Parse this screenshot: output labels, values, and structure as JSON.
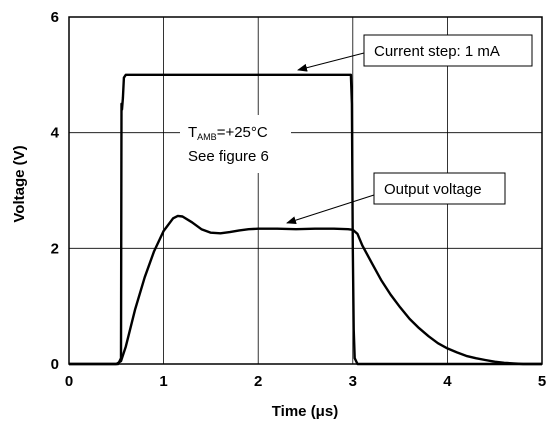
{
  "chart_data": {
    "type": "line",
    "title": "",
    "xlabel": "Time (μs)",
    "ylabel": "Voltage (V)",
    "xlim": [
      0,
      5
    ],
    "ylim": [
      0,
      6
    ],
    "x_ticks": [
      0,
      1,
      2,
      3,
      4,
      5
    ],
    "y_ticks": [
      0,
      2,
      4,
      6
    ],
    "x_tick_labels": [
      "0",
      "1",
      "2",
      "3",
      "4",
      "5"
    ],
    "y_tick_labels": [
      "0",
      "2",
      "4",
      "6"
    ],
    "grid": true,
    "line_color": "#000000",
    "series": [
      {
        "x": [
          0,
          0.52,
          0.55,
          0.555,
          0.56,
          0.57,
          0.58,
          0.6,
          2.0,
          2.98,
          2.99,
          3.0,
          3.01,
          3.02,
          3.05,
          3.1,
          4.0,
          5.0
        ],
        "y": [
          0,
          0,
          0.1,
          4.5,
          4.4,
          4.6,
          4.95,
          5.0,
          5.0,
          5.0,
          4.5,
          2.0,
          0.6,
          0.1,
          0.0,
          0.0,
          0.0,
          0.0
        ]
      },
      {
        "x": [
          0,
          0.5,
          0.55,
          0.6,
          0.7,
          0.8,
          0.9,
          1.0,
          1.1,
          1.15,
          1.2,
          1.3,
          1.4,
          1.5,
          1.6,
          1.7,
          1.8,
          1.9,
          2.0,
          2.2,
          2.4,
          2.6,
          2.8,
          2.95,
          3.0,
          3.05,
          3.1,
          3.2,
          3.3,
          3.4,
          3.5,
          3.6,
          3.7,
          3.8,
          3.9,
          4.0,
          4.1,
          4.2,
          4.3,
          4.4,
          4.5,
          4.6,
          4.7,
          4.8,
          5.0
        ],
        "y": [
          0,
          0,
          0.05,
          0.3,
          0.95,
          1.5,
          1.95,
          2.3,
          2.52,
          2.56,
          2.55,
          2.45,
          2.33,
          2.27,
          2.26,
          2.28,
          2.31,
          2.33,
          2.34,
          2.34,
          2.33,
          2.34,
          2.34,
          2.33,
          2.32,
          2.25,
          2.05,
          1.75,
          1.45,
          1.2,
          0.98,
          0.78,
          0.62,
          0.48,
          0.36,
          0.27,
          0.2,
          0.14,
          0.1,
          0.07,
          0.04,
          0.02,
          0.01,
          0.0,
          0.0
        ]
      }
    ],
    "annotations": {
      "current_step": "Current step: 1 mA",
      "output_voltage": "Output voltage",
      "temp_prefix": "T",
      "temp_sub": "AMB",
      "temp_suffix": "=+25°C",
      "see_figure": "See figure 6"
    }
  }
}
